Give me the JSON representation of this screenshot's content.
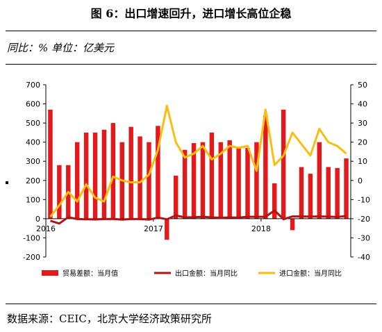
{
  "header": {
    "title": "图 6：出口增速回升，进口增长高位企稳",
    "unit": "同比：% 单位：亿美元"
  },
  "footer": {
    "source": "数据来源：CEIC，北京大学经济政策研究所"
  },
  "chart_data": {
    "type": "bar+line",
    "x": [
      "2016-01",
      "2016-02",
      "2016-03",
      "2016-04",
      "2016-05",
      "2016-06",
      "2016-07",
      "2016-08",
      "2016-09",
      "2016-10",
      "2016-11",
      "2016-12",
      "2017-01",
      "2017-02",
      "2017-03",
      "2017-04",
      "2017-05",
      "2017-06",
      "2017-07",
      "2017-08",
      "2017-09",
      "2017-10",
      "2017-11",
      "2017-12",
      "2018-01",
      "2018-02",
      "2018-03",
      "2018-04",
      "2018-05",
      "2018-06",
      "2018-07",
      "2018-08",
      "2018-09",
      "2018-10"
    ],
    "x_tick_labels": [
      "2016",
      "2017",
      "2018"
    ],
    "left_axis": {
      "ylim": [
        -200,
        700
      ],
      "ticks": [
        -200,
        -100,
        0,
        100,
        200,
        300,
        400,
        500,
        600,
        700
      ]
    },
    "right_axis": {
      "ylim": [
        -40,
        50
      ],
      "ticks": [
        -40,
        -30,
        -20,
        -10,
        0,
        10,
        20,
        30,
        40,
        50
      ]
    },
    "legend_placement": "bottom",
    "series": [
      {
        "name": "贸易差额：当月值",
        "axis": "left",
        "type": "bar",
        "color": "#e31a1c",
        "values": [
          570,
          280,
          280,
          400,
          450,
          450,
          465,
          500,
          400,
          480,
          430,
          400,
          485,
          -110,
          225,
          360,
          395,
          400,
          450,
          400,
          410,
          370,
          370,
          400,
          540,
          185,
          570,
          -60,
          270,
          235,
          400,
          270,
          265,
          315
        ]
      },
      {
        "name": "出口金额：当月同比",
        "axis": "left",
        "type": "line",
        "color": "#b01414",
        "values": [
          -11,
          -25,
          8,
          -2,
          -3,
          -4,
          -2,
          -1,
          -5,
          -2,
          -2,
          -5,
          6,
          -3,
          17,
          7,
          8,
          10,
          7,
          5,
          7,
          6,
          10,
          10,
          10,
          43,
          -3,
          12,
          12,
          11,
          12,
          11,
          9,
          14
        ]
      },
      {
        "name": "进口金额：当月同比",
        "axis": "right",
        "type": "line",
        "color": "#fbbd12",
        "values": [
          -19,
          -13,
          -6,
          -11,
          -2,
          -9,
          -11,
          2,
          0,
          -1,
          -1,
          3,
          16,
          39,
          20,
          12,
          14,
          18,
          11,
          14,
          18,
          17,
          18,
          5,
          37,
          8,
          13,
          25,
          19,
          13,
          27,
          20,
          18,
          14
        ]
      }
    ]
  }
}
